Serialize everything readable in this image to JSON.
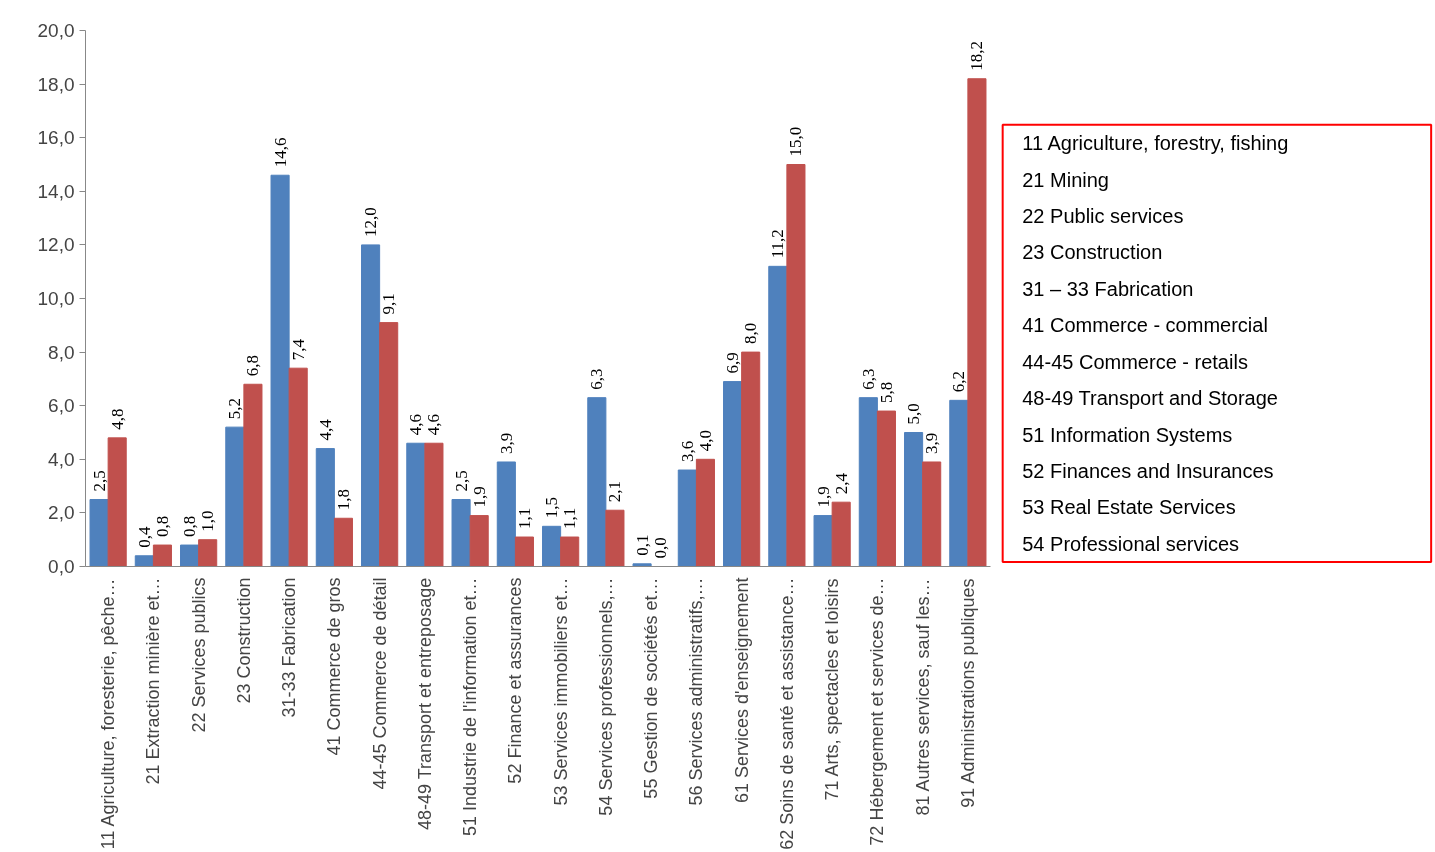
{
  "chart_data": {
    "type": "bar",
    "categories": [
      "11 Agriculture, foresterie, pêche…",
      "21 Extraction minière et…",
      "22 Services publics",
      "23 Construction",
      "31-33 Fabrication",
      "41 Commerce de gros",
      "44-45 Commerce de détail",
      "48-49 Transport et entreposage",
      "51 Industrie de l'information et…",
      "52 Finance et assurances",
      "53 Services immobiliers et…",
      "54 Services professionnels,…",
      "55 Gestion de sociétés et…",
      "56 Services administratifs,…",
      "61 Services d'enseignement",
      "62 Soins de santé et assistance…",
      "71 Arts, spectacles et loisirs",
      "72 Hébergement et services de…",
      "81 Autres services, sauf les…",
      "91 Administrations publiques"
    ],
    "series": [
      {
        "color": "#4f81bd",
        "values": [
          2.5,
          0.4,
          0.8,
          5.2,
          14.6,
          4.4,
          12.0,
          4.6,
          2.5,
          3.9,
          1.5,
          6.3,
          0.1,
          3.6,
          6.9,
          11.2,
          1.9,
          6.3,
          5.0,
          6.2
        ],
        "value_labels": [
          "2,5",
          "0,4",
          "0,8",
          "5,2",
          "14,6",
          "4,4",
          "12,0",
          "4,6",
          "2,5",
          "3,9",
          "1,5",
          "6,3",
          "0,1",
          "3,6",
          "6,9",
          "11,2",
          "1,9",
          "6,3",
          "5,0",
          "6,2"
        ]
      },
      {
        "color": "#c0504d",
        "values": [
          4.8,
          0.8,
          1.0,
          6.8,
          7.4,
          1.8,
          9.1,
          4.6,
          1.9,
          1.1,
          1.1,
          2.1,
          0.0,
          4.0,
          8.0,
          15.0,
          2.4,
          5.8,
          3.9,
          18.2
        ],
        "value_labels": [
          "4,8",
          "0,8",
          "1,0",
          "6,8",
          "7,4",
          "1,8",
          "9,1",
          "4,6",
          "1,9",
          "1,1",
          "1,1",
          "2,1",
          "0,0",
          "4,0",
          "8,0",
          "15,0",
          "2,4",
          "5,8",
          "3,9",
          "18,2"
        ]
      }
    ],
    "ylim": [
      0,
      20
    ],
    "yticks": [
      {
        "value": 0,
        "label": "0,0"
      },
      {
        "value": 2,
        "label": "2,0"
      },
      {
        "value": 4,
        "label": "4,0"
      },
      {
        "value": 6,
        "label": "6,0"
      },
      {
        "value": 8,
        "label": "8,0"
      },
      {
        "value": 10,
        "label": "10,0"
      },
      {
        "value": 12,
        "label": "12,0"
      },
      {
        "value": 14,
        "label": "14,0"
      },
      {
        "value": 16,
        "label": "16,0"
      },
      {
        "value": 18,
        "label": "18,0"
      },
      {
        "value": 20,
        "label": "20,0"
      }
    ],
    "grid": false,
    "annotations": [
      "11 Agriculture, forestry, fishing",
      "21 Mining",
      "22 Public services",
      "23 Construction",
      "31 – 33 Fabrication",
      "41 Commerce - commercial",
      "44-45 Commerce - retails",
      "48-49 Transport and Storage",
      "51 Information Systems",
      "52 Finances and Insurances",
      "53 Real Estate Services",
      "54 Professional services"
    ]
  }
}
